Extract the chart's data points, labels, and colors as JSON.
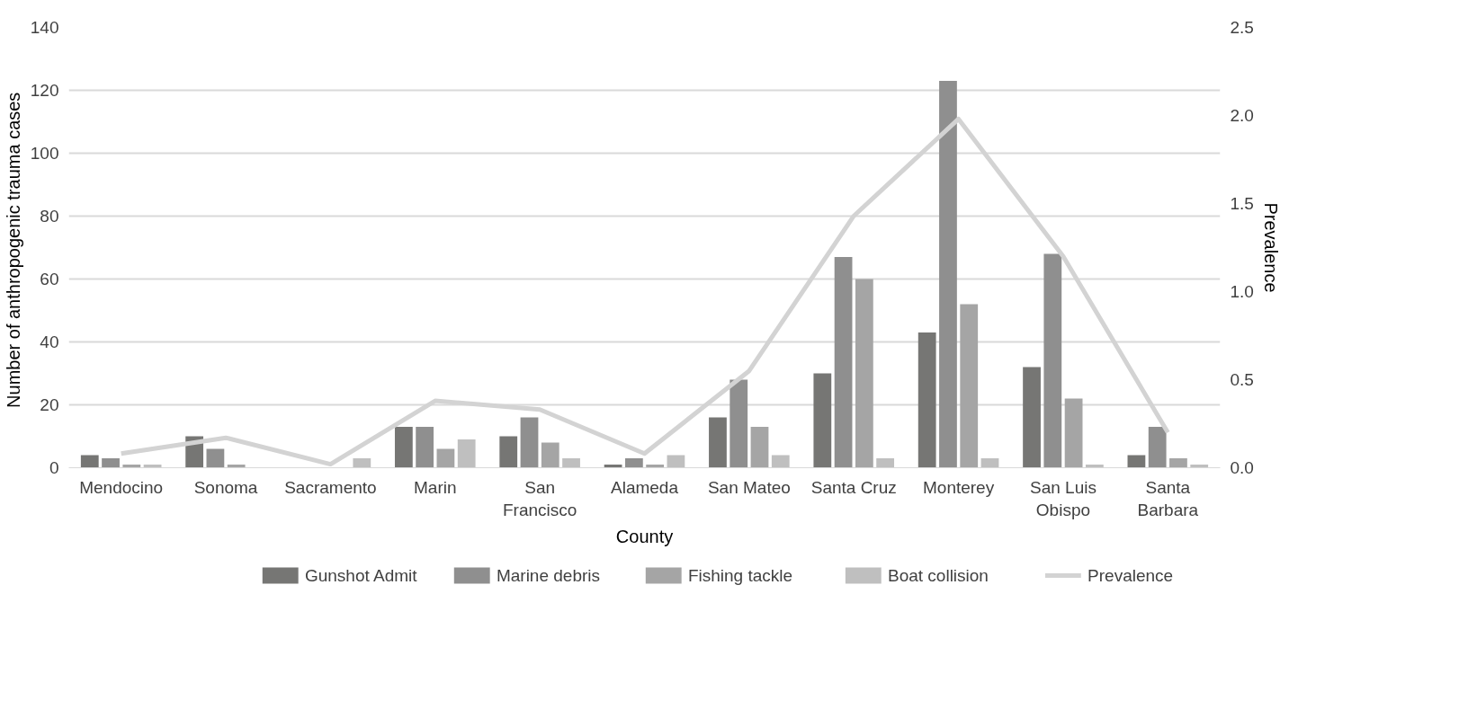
{
  "chart_data": {
    "type": "bar",
    "xlabel": "County",
    "ylabel": "Number of anthropogenic  trauma cases",
    "y2label": "Prevalence",
    "categories": [
      "Mendocino",
      "Sonoma",
      "Sacramento",
      "Marin",
      "San Francisco",
      "Alameda",
      "San Mateo",
      "Santa Cruz",
      "Monterey",
      "San Luis Obispo",
      "Santa Barbara"
    ],
    "series": [
      {
        "name": "Gunshot Admit",
        "color": "#767674",
        "values": [
          4,
          10,
          0,
          13,
          10,
          1,
          16,
          30,
          43,
          32,
          4
        ]
      },
      {
        "name": "Marine debris",
        "color": "#8f8f8f",
        "values": [
          3,
          6,
          0,
          13,
          16,
          3,
          28,
          67,
          123,
          68,
          13
        ]
      },
      {
        "name": "Fishing tackle",
        "color": "#a5a5a5",
        "values": [
          1,
          1,
          0,
          6,
          8,
          1,
          13,
          60,
          52,
          22,
          3
        ]
      },
      {
        "name": "Boat collision",
        "color": "#bfbfbf",
        "values": [
          1,
          0,
          3,
          9,
          3,
          4,
          4,
          3,
          3,
          1,
          1
        ]
      },
      {
        "name": "Prevalence",
        "type": "line",
        "axis": "y2",
        "color": "#d3d3d3",
        "values": [
          0.08,
          0.17,
          0.02,
          0.38,
          0.33,
          0.08,
          0.55,
          1.43,
          1.98,
          1.2,
          0.2
        ]
      }
    ],
    "ylim": [
      0,
      140
    ],
    "yticks": [
      0,
      20,
      40,
      60,
      80,
      100,
      120,
      140
    ],
    "y2lim": [
      0,
      2.5
    ],
    "y2ticks": [
      {
        "value": 0,
        "label": "0.0"
      },
      {
        "value": 0.5,
        "label": "0.5"
      },
      {
        "value": 1,
        "label": "1.0"
      },
      {
        "value": 1.5,
        "label": "1.5"
      },
      {
        "value": 2,
        "label": "2.0"
      },
      {
        "value": 2.5,
        "label": "2.5"
      }
    ],
    "grid": "y",
    "legend": "bottom",
    "line_style": "solid",
    "marker": "none"
  }
}
